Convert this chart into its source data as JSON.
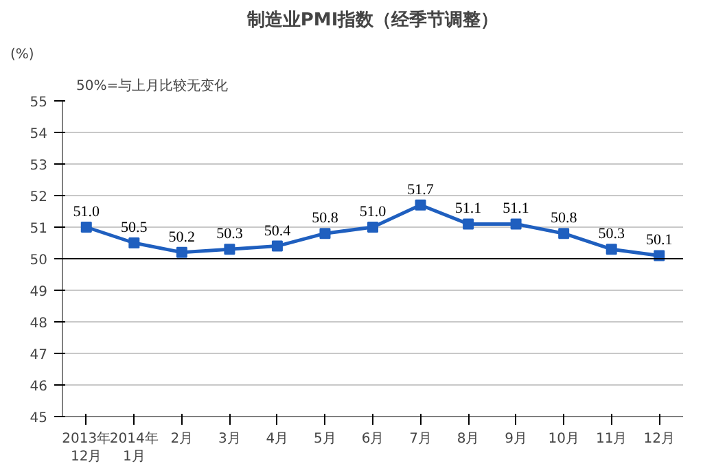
{
  "chart_data": {
    "type": "line",
    "title": "制造业PMI指数（经季节调整）",
    "ylabel": "(%)",
    "annotations": [
      "50%=与上月比较无变化"
    ],
    "categories": [
      "2013年\n12月",
      "2014年\n1月",
      "2月",
      "3月",
      "4月",
      "5月",
      "6月",
      "7月",
      "8月",
      "9月",
      "10月",
      "11月",
      "12月"
    ],
    "series": [
      {
        "color": "#1f5fbf",
        "values": [
          51.0,
          50.5,
          50.2,
          50.3,
          50.4,
          50.8,
          51.0,
          51.7,
          51.1,
          51.1,
          50.8,
          50.3,
          50.1
        ],
        "value_labels": [
          "51.0",
          "50.5",
          "50.2",
          "50.3",
          "50.4",
          "50.8",
          "51.0",
          "51.7",
          "51.1",
          "51.1",
          "50.8",
          "50.3",
          "50.1"
        ]
      }
    ],
    "ylim": [
      45,
      55
    ],
    "yticks": [
      45,
      46,
      47,
      48,
      49,
      50,
      51,
      52,
      53,
      54,
      55
    ],
    "grid": "y",
    "marker": "square",
    "line_style": "solid",
    "ref_lines": [
      {
        "axis": "y",
        "value": 50,
        "color": "#000000"
      }
    ]
  }
}
